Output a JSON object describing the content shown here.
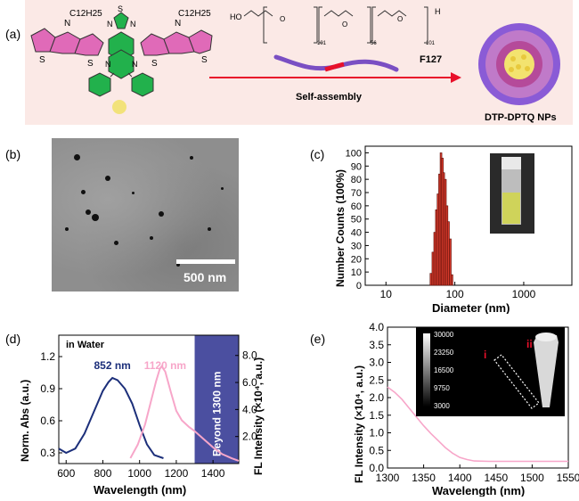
{
  "panels": {
    "a": "(a)",
    "b": "(b)",
    "c": "(c)",
    "d": "(d)",
    "e": "(e)"
  },
  "panel_a": {
    "alkyl_left": "C12H25",
    "alkyl_right": "C12H25",
    "polymer_ho": "HO",
    "polymer_h": "H",
    "repeat_1": "101",
    "repeat_2": "56",
    "repeat_3": "101",
    "f127_label": "F127",
    "self_assembly_label": "Self-assembly",
    "nps_label": "DTP-DPTQ  NPs",
    "atoms": {
      "s": "S",
      "n": "N"
    }
  },
  "panel_b": {
    "scale_bar_label": "500 nm"
  },
  "colors": {
    "band": "#fbe9e6",
    "thiophene": "#e06ab8",
    "acceptor": "#22b14c",
    "phenyl": "#22b14c",
    "arrow": "#e8102a",
    "hist_bar": "#d63a2b",
    "abs_line": "#1c2f7a",
    "fl_line": "#f7a6c9",
    "nir_window": "#4b4fa0",
    "vial_liquid": "#cfd35a"
  },
  "chart_data": [
    {
      "id": "c",
      "type": "bar",
      "xlabel": "Diameter (nm)",
      "ylabel": "Number Counts (100%)",
      "xscale": "log",
      "xlim": [
        5,
        5000
      ],
      "ylim": [
        0,
        105
      ],
      "xticks": [
        10,
        100,
        1000
      ],
      "xtick_labels": [
        "10",
        "100",
        "1000"
      ],
      "yticks": [
        0,
        10,
        20,
        30,
        40,
        50,
        60,
        70,
        80,
        90,
        100
      ],
      "bins": [
        {
          "x": 45,
          "y": 9
        },
        {
          "x": 48,
          "y": 25
        },
        {
          "x": 51,
          "y": 40
        },
        {
          "x": 54,
          "y": 57
        },
        {
          "x": 57,
          "y": 69
        },
        {
          "x": 60,
          "y": 84
        },
        {
          "x": 63,
          "y": 100
        },
        {
          "x": 66,
          "y": 96
        },
        {
          "x": 69,
          "y": 85
        },
        {
          "x": 73,
          "y": 80
        },
        {
          "x": 77,
          "y": 60
        },
        {
          "x": 81,
          "y": 48
        },
        {
          "x": 86,
          "y": 35
        },
        {
          "x": 91,
          "y": 8
        }
      ]
    },
    {
      "id": "d",
      "type": "line",
      "annotation": "in Water",
      "xlabel": "Wavelength (nm)",
      "ylabel_left": "Norm. Abs (a.u.)",
      "ylabel_right": "FL Intensity (×10⁴, a.u.)",
      "xlim": [
        560,
        1540
      ],
      "ylim_left": [
        0.2,
        1.4
      ],
      "ylim_right": [
        0,
        9.5
      ],
      "xticks": [
        600,
        800,
        1000,
        1200,
        1400
      ],
      "yticks_left": [
        0.3,
        0.6,
        0.9,
        1.2
      ],
      "yticks_right": [
        2.0,
        4.0,
        6.0,
        8.0
      ],
      "window_label": "Beyond 1300 nm",
      "window_range": [
        1300,
        1540
      ],
      "abs_peak_label": "852 nm",
      "fl_peak_label": "1120 nm",
      "series": [
        {
          "axis": "left",
          "color": "#1c2f7a",
          "x": [
            560,
            600,
            650,
            700,
            750,
            800,
            830,
            852,
            880,
            920,
            960,
            1000,
            1040,
            1080,
            1130
          ],
          "y": [
            0.34,
            0.3,
            0.34,
            0.48,
            0.68,
            0.88,
            0.96,
            1.0,
            0.98,
            0.9,
            0.76,
            0.56,
            0.38,
            0.28,
            0.25
          ]
        },
        {
          "axis": "right",
          "color": "#f7a6c9",
          "x": [
            950,
            990,
            1030,
            1060,
            1090,
            1110,
            1120,
            1140,
            1170,
            1200,
            1230,
            1270,
            1300,
            1350,
            1400,
            1450,
            1500,
            1540
          ],
          "y": [
            0.4,
            1.4,
            2.9,
            4.5,
            6.1,
            7.0,
            7.2,
            6.8,
            5.3,
            3.9,
            3.2,
            2.7,
            2.4,
            1.8,
            1.2,
            0.7,
            0.4,
            0.2
          ]
        }
      ]
    },
    {
      "id": "e",
      "type": "line",
      "xlabel": "Wavelength (nm)",
      "ylabel": "FL Intensity (×10⁴, a.u.)",
      "xlim": [
        1300,
        1550
      ],
      "ylim": [
        0,
        4.0
      ],
      "xticks": [
        1300,
        1350,
        1400,
        1450,
        1500,
        1550
      ],
      "yticks": [
        0,
        0.5,
        1.0,
        1.5,
        2.0,
        2.5,
        3.0,
        3.5,
        4.0
      ],
      "ytick_labels": [
        "0.0",
        "0.5",
        "1.0",
        "1.5",
        "2.0",
        "2.5",
        "3.0",
        "3.5",
        "4.0"
      ],
      "inset_colorbar": [
        "30000",
        "23250",
        "16500",
        "9750",
        "3000"
      ],
      "inset_labels": [
        "i",
        "ii"
      ],
      "series": [
        {
          "color": "#f7a6c9",
          "x": [
            1300,
            1310,
            1320,
            1330,
            1340,
            1350,
            1360,
            1370,
            1380,
            1390,
            1400,
            1410,
            1420,
            1440,
            1460,
            1480,
            1500,
            1520,
            1550
          ],
          "y": [
            2.3,
            2.15,
            1.95,
            1.7,
            1.45,
            1.2,
            0.98,
            0.78,
            0.58,
            0.42,
            0.3,
            0.24,
            0.2,
            0.19,
            0.19,
            0.19,
            0.19,
            0.19,
            0.19
          ]
        }
      ]
    }
  ]
}
